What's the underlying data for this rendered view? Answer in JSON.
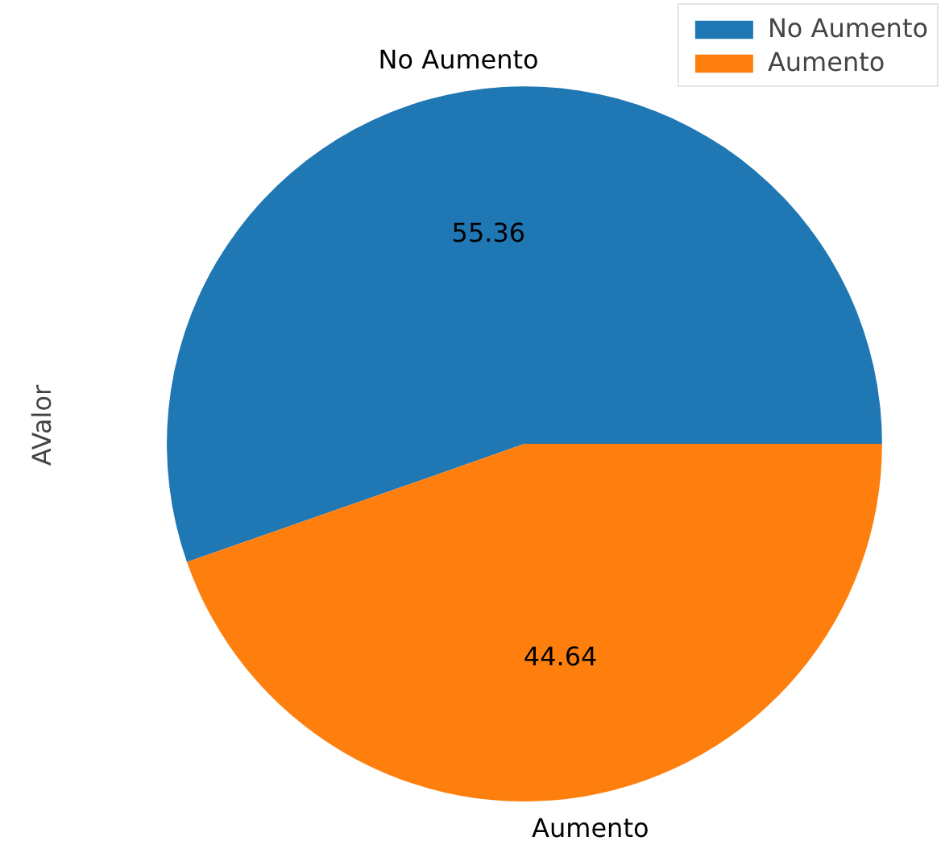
{
  "chart_data": {
    "type": "pie",
    "ylabel": "AValor",
    "categories": [
      "No Aumento",
      "Aumento"
    ],
    "values": [
      55.36,
      44.64
    ],
    "colors": [
      "#1f77b4",
      "#ff7f0e"
    ],
    "data_labels": true,
    "legend": "top right"
  }
}
